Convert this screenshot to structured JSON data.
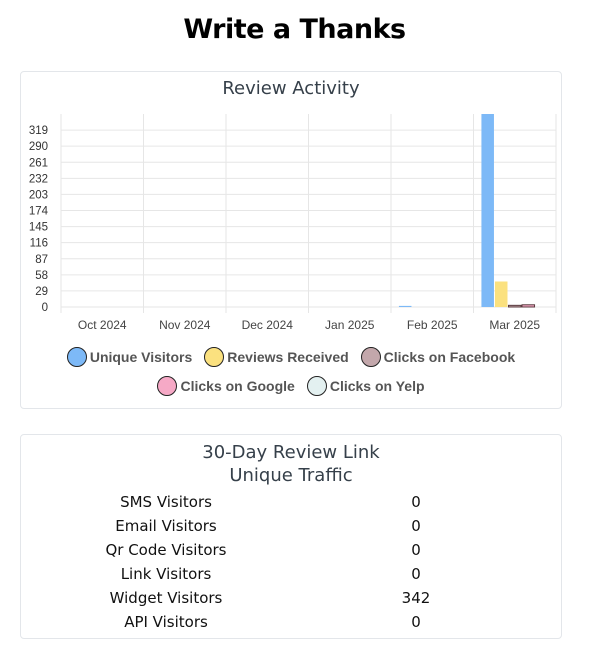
{
  "page": {
    "title": "Write a Thanks"
  },
  "activity": {
    "title": "Review Activity",
    "legend": [
      {
        "label": "Unique Visitors",
        "color": "#7db9f7"
      },
      {
        "label": "Reviews Received",
        "color": "#fbe17f"
      },
      {
        "label": "Clicks on Facebook",
        "color": "#c3a7ab"
      },
      {
        "label": "Clicks on Google",
        "color": "#f6a9c6"
      },
      {
        "label": "Clicks on Yelp",
        "color": "#e3f0f0"
      }
    ]
  },
  "chart_data": {
    "type": "bar",
    "title": "Review Activity",
    "categories": [
      "Oct 2024",
      "Nov 2024",
      "Dec 2024",
      "Jan 2025",
      "Feb 2025",
      "Mar 2025"
    ],
    "yticks": [
      0,
      29,
      58,
      87,
      116,
      145,
      174,
      203,
      232,
      261,
      290,
      319
    ],
    "ylim": [
      0,
      348
    ],
    "grid": true,
    "legend_position": "bottom",
    "series": [
      {
        "name": "Unique Visitors",
        "color": "#7db9f7",
        "values": [
          0,
          0,
          0,
          0,
          2,
          348
        ]
      },
      {
        "name": "Reviews Received",
        "color": "#fbe17f",
        "values": [
          0,
          0,
          0,
          0,
          0,
          46
        ]
      },
      {
        "name": "Clicks on Facebook",
        "color": "#c3a7ab",
        "values": [
          0,
          0,
          0,
          0,
          0,
          3
        ]
      },
      {
        "name": "Clicks on Google",
        "color": "#f6a9c6",
        "values": [
          0,
          0,
          0,
          0,
          0,
          4
        ]
      },
      {
        "name": "Clicks on Yelp",
        "color": "#e3f0f0",
        "values": [
          0,
          0,
          0,
          0,
          0,
          0
        ]
      }
    ]
  },
  "traffic": {
    "title_line1": "30-Day Review Link",
    "title_line2": "Unique Traffic",
    "rows": [
      {
        "label": "SMS Visitors",
        "value": "0"
      },
      {
        "label": "Email Visitors",
        "value": "0"
      },
      {
        "label": "Qr Code Visitors",
        "value": "0"
      },
      {
        "label": "Link Visitors",
        "value": "0"
      },
      {
        "label": "Widget Visitors",
        "value": "342"
      },
      {
        "label": "API Visitors",
        "value": "0"
      }
    ]
  }
}
